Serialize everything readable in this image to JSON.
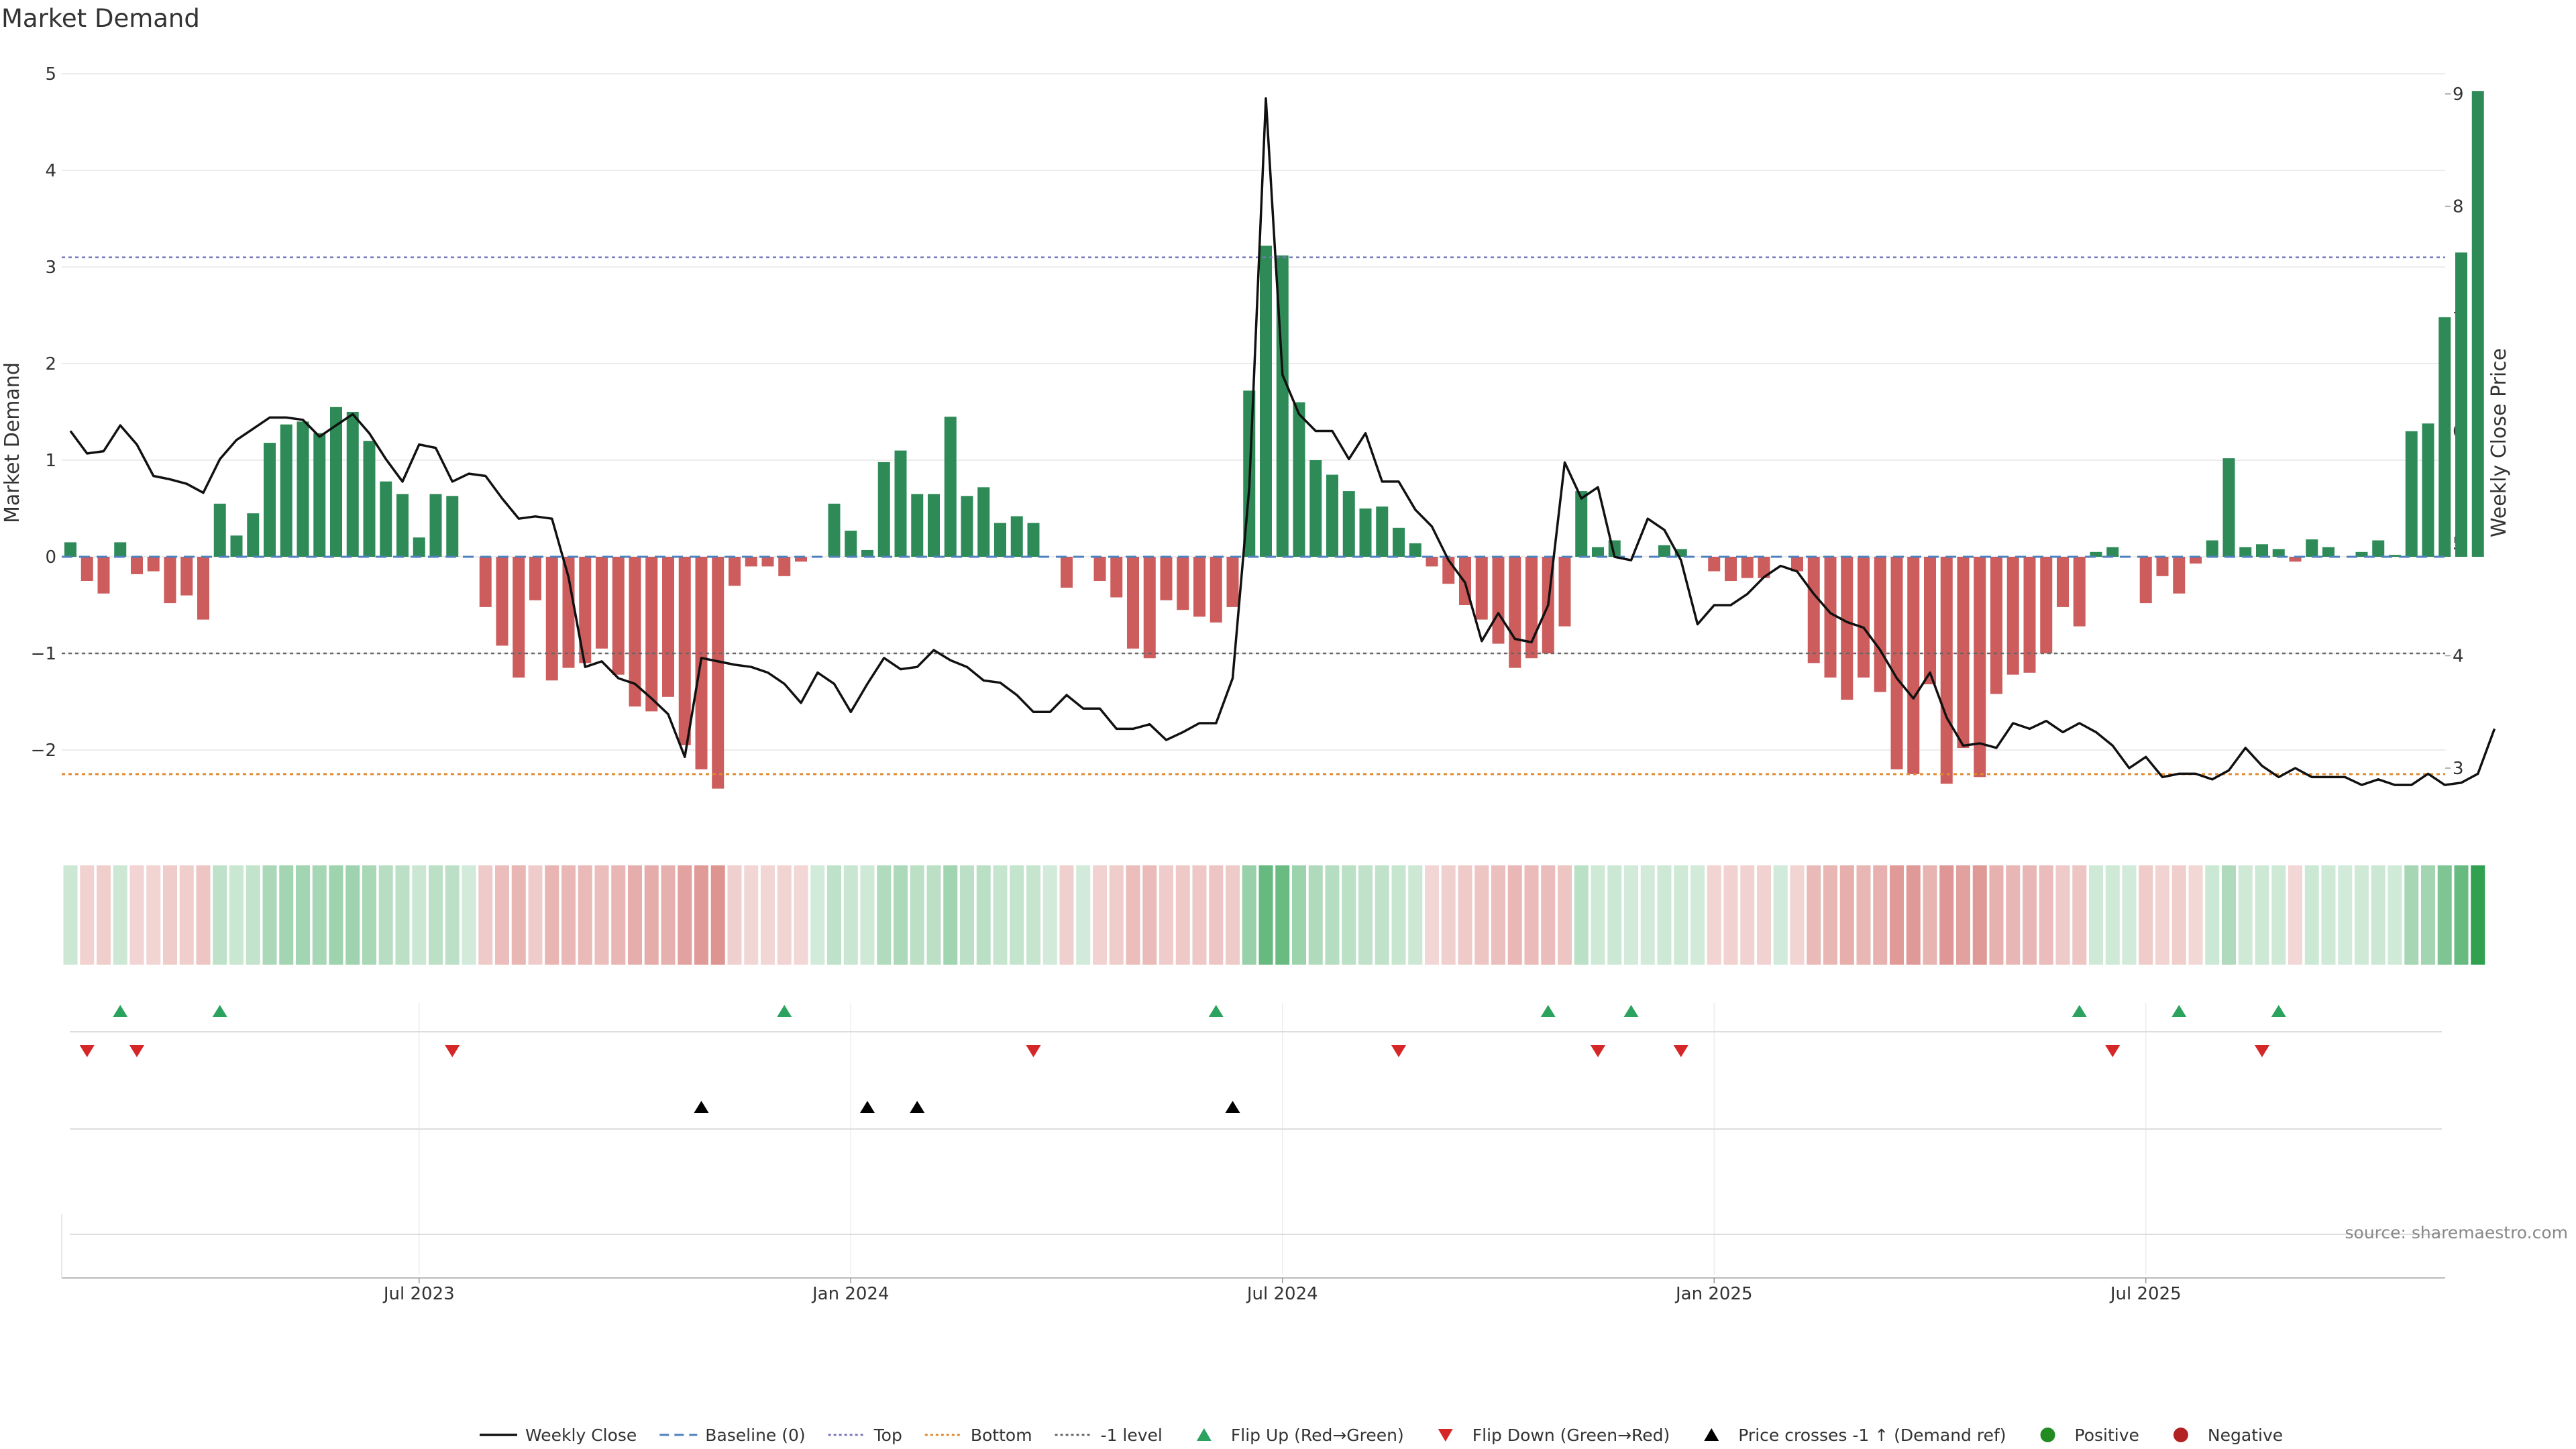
{
  "chart_data": {
    "type": "bar",
    "title": "Market Demand",
    "ylabel": "Market Demand",
    "y2label": "Weekly Close Price",
    "ylim": [
      -2.8,
      5.0
    ],
    "y2lim": [
      2.55,
      9.2
    ],
    "yticks": [
      5,
      4,
      3,
      2,
      1,
      0,
      -1,
      -2
    ],
    "yticklabels": [
      "5",
      "4",
      "3",
      "2",
      "1",
      "0",
      "−1",
      "−2"
    ],
    "y2ticks": [
      9,
      8,
      7,
      6,
      5,
      4,
      3
    ],
    "x_dates": [
      "Jul 2023",
      "Jan 2024",
      "Jul 2024",
      "Jan 2025",
      "Jul 2025"
    ],
    "x_date_week_index": [
      21,
      47,
      73,
      99,
      125
    ],
    "thresholds": {
      "top": 3.1,
      "bottom": -2.25,
      "minus_one": -1.0
    },
    "demand_values": [
      0.15,
      -0.25,
      -0.38,
      0.15,
      -0.18,
      -0.15,
      -0.48,
      -0.4,
      -0.65,
      0.55,
      0.22,
      0.45,
      1.18,
      1.37,
      1.4,
      1.28,
      1.55,
      1.5,
      1.2,
      0.78,
      0.65,
      0.2,
      0.65,
      0.63,
      0.0,
      -0.52,
      -0.92,
      -1.25,
      -0.45,
      -1.28,
      -1.15,
      -1.1,
      -0.95,
      -1.22,
      -1.55,
      -1.6,
      -1.45,
      -1.95,
      -2.2,
      -2.4,
      -0.3,
      -0.1,
      -0.1,
      -0.2,
      -0.05,
      0.0,
      0.55,
      0.27,
      0.07,
      0.98,
      1.1,
      0.65,
      0.65,
      1.45,
      0.63,
      0.72,
      0.35,
      0.42,
      0.35,
      0.0,
      -0.32,
      0.0,
      -0.25,
      -0.42,
      -0.95,
      -1.05,
      -0.45,
      -0.55,
      -0.62,
      -0.68,
      -0.52,
      1.72,
      3.22,
      3.12,
      1.6,
      1.0,
      0.85,
      0.68,
      0.5,
      0.52,
      0.3,
      0.14,
      -0.1,
      -0.28,
      -0.5,
      -0.65,
      -0.9,
      -1.15,
      -1.05,
      -1.0,
      -0.72,
      0.68,
      0.1,
      0.17,
      0.0,
      0.0,
      0.12,
      0.08,
      0.0,
      -0.15,
      -0.25,
      -0.22,
      -0.22,
      0.0,
      -0.15,
      -1.1,
      -1.25,
      -1.48,
      -1.25,
      -1.4,
      -2.2,
      -2.25,
      -1.32,
      -2.35,
      -1.98,
      -2.28,
      -1.42,
      -1.22,
      -1.2,
      -1.0,
      -0.52,
      -0.72,
      0.05,
      0.1,
      0.0,
      -0.48,
      -0.2,
      -0.38,
      -0.07,
      0.17,
      1.02,
      0.1,
      0.13,
      0.08,
      -0.05,
      0.18,
      0.1,
      0.0,
      0.05,
      0.17,
      0.02,
      1.3,
      1.38,
      2.48,
      3.15,
      4.82
    ],
    "close_series": {
      "name": "Weekly Close",
      "values": [
        6.0,
        5.8,
        5.82,
        6.05,
        5.88,
        5.6,
        5.57,
        5.53,
        5.45,
        5.75,
        5.92,
        6.02,
        6.12,
        6.12,
        6.1,
        5.95,
        6.05,
        6.15,
        5.98,
        5.75,
        5.55,
        5.88,
        5.85,
        5.55,
        5.62,
        5.6,
        5.4,
        5.22,
        5.24,
        5.22,
        4.7,
        3.9,
        3.95,
        3.8,
        3.75,
        3.62,
        3.48,
        3.1,
        3.98,
        3.95,
        3.92,
        3.9,
        3.85,
        3.75,
        3.58,
        3.85,
        3.75,
        3.5,
        3.75,
        3.98,
        3.88,
        3.9,
        4.05,
        3.96,
        3.9,
        3.78,
        3.76,
        3.65,
        3.5,
        3.5,
        3.65,
        3.53,
        3.53,
        3.35,
        3.35,
        3.39,
        3.25,
        3.32,
        3.4,
        3.4,
        3.8,
        5.5,
        8.96,
        6.5,
        6.15,
        6.0,
        6.0,
        5.75,
        5.98,
        5.55,
        5.55,
        5.3,
        5.15,
        4.85,
        4.65,
        4.13,
        4.38,
        4.15,
        4.12,
        4.45,
        5.72,
        5.4,
        5.5,
        4.88,
        4.85,
        5.22,
        5.12,
        4.85,
        4.28,
        4.45,
        4.45,
        4.55,
        4.7,
        4.8,
        4.75,
        4.55,
        4.38,
        4.3,
        4.25,
        4.05,
        3.8,
        3.62,
        3.85,
        3.45,
        3.2,
        3.22,
        3.18,
        3.4,
        3.35,
        3.42,
        3.32,
        3.4,
        3.32,
        3.2,
        3.0,
        3.1,
        2.92,
        2.95,
        2.95,
        2.9,
        2.98,
        3.18,
        3.02,
        2.92,
        3.0,
        2.92,
        2.92,
        2.92,
        2.85,
        2.9,
        2.85,
        2.85,
        2.95,
        2.85,
        2.87,
        2.95,
        3.35
      ]
    },
    "flip_up_weeks": [
      3,
      9,
      43,
      69,
      89,
      94,
      121,
      127,
      133
    ],
    "flip_down_weeks": [
      1,
      4,
      23,
      58,
      80,
      92,
      97,
      123,
      132
    ],
    "price_cross_weeks": [
      38,
      48,
      51,
      70
    ],
    "legend": [
      {
        "name": "Weekly Close",
        "kind": "line",
        "color": "#111111"
      },
      {
        "name": "Baseline (0)",
        "kind": "dash",
        "color": "#4f81bd"
      },
      {
        "name": "Top",
        "kind": "dot",
        "color": "#7777bb"
      },
      {
        "name": "Bottom",
        "kind": "dot",
        "color": "#e08a2c"
      },
      {
        "name": "-1 level",
        "kind": "dot",
        "color": "#666666"
      },
      {
        "name": "Flip Up (Red→Green)",
        "kind": "tri-up",
        "color": "#2ca25f"
      },
      {
        "name": "Flip Down (Green→Red)",
        "kind": "tri-down",
        "color": "#d62728"
      },
      {
        "name": "Price crosses -1 ↑ (Demand ref)",
        "kind": "tri-up",
        "color": "#000000"
      },
      {
        "name": "Positive",
        "kind": "circle",
        "color": "#228b22"
      },
      {
        "name": "Negative",
        "kind": "circle",
        "color": "#b22222"
      }
    ],
    "source": "source: sharemaestro.com"
  },
  "colors": {
    "positive": "#2e8b57",
    "negative": "#cd5c5c"
  }
}
